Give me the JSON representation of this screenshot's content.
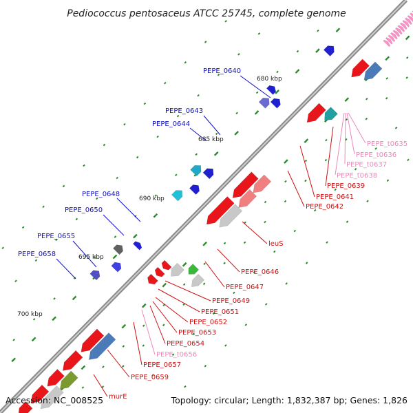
{
  "title": "Pediococcus pentosaceus ATCC 25745, complete genome",
  "footer": {
    "accession": "Accession: NC_008525",
    "summary": "Topology: circular; Length: 1,832,387 bp; Genes: 1,826"
  },
  "colors": {
    "forward_cds": "#e8161a",
    "reverse_cds": "#1515e0",
    "trna": "#ff8fc8",
    "backbone": "#888888",
    "tick": "#2a8a2a",
    "label_forward": "#1010c0",
    "label_reverse": "#cc1010",
    "label_trna": "#ee88bb"
  },
  "scale_labels": [
    {
      "id": "680",
      "text": "680 kbp"
    },
    {
      "id": "685",
      "text": "685 kbp"
    },
    {
      "id": "690",
      "text": "690 kbp"
    },
    {
      "id": "695",
      "text": "695 kbp"
    },
    {
      "id": "700",
      "text": "700 kbp"
    }
  ],
  "gene_labels": [
    {
      "id": "pepe-0640",
      "text": "PEPE_0640",
      "kind": "forward"
    },
    {
      "id": "pepe-0643",
      "text": "PEPE_0643",
      "kind": "forward"
    },
    {
      "id": "pepe-0644",
      "text": "PEPE_0644",
      "kind": "forward"
    },
    {
      "id": "pepe-0648",
      "text": "PEPE_0648",
      "kind": "forward"
    },
    {
      "id": "pepe-0650",
      "text": "PEPE_0650",
      "kind": "forward"
    },
    {
      "id": "pepe-0655",
      "text": "PEPE_0655",
      "kind": "forward"
    },
    {
      "id": "pepe-0658",
      "text": "PEPE_0658",
      "kind": "forward"
    },
    {
      "id": "pepe-t0635",
      "text": "PEPE_t0635",
      "kind": "trna"
    },
    {
      "id": "pepe-t0636",
      "text": "PEPE_t0636",
      "kind": "trna"
    },
    {
      "id": "pepe-t0637",
      "text": "PEPE_t0637",
      "kind": "trna"
    },
    {
      "id": "pepe-t0638",
      "text": "PEPE_t0638",
      "kind": "trna"
    },
    {
      "id": "pepe-0639",
      "text": "PEPE_0639",
      "kind": "reverse"
    },
    {
      "id": "pepe-0641",
      "text": "PEPE_0641",
      "kind": "reverse"
    },
    {
      "id": "pepe-0642",
      "text": "PEPE_0642",
      "kind": "reverse"
    },
    {
      "id": "leus",
      "text": "leuS",
      "kind": "reverse"
    },
    {
      "id": "pepe-0646",
      "text": "PEPE_0646",
      "kind": "reverse"
    },
    {
      "id": "pepe-0647",
      "text": "PEPE_0647",
      "kind": "reverse"
    },
    {
      "id": "pepe-0649",
      "text": "PEPE_0649",
      "kind": "reverse"
    },
    {
      "id": "pepe-0651",
      "text": "PEPE_0651",
      "kind": "reverse"
    },
    {
      "id": "pepe-0652",
      "text": "PEPE_0652",
      "kind": "reverse"
    },
    {
      "id": "pepe-0653",
      "text": "PEPE_0653",
      "kind": "reverse"
    },
    {
      "id": "pepe-0654",
      "text": "PEPE_0654",
      "kind": "reverse"
    },
    {
      "id": "pepe-t0656",
      "text": "PEPE_t0656",
      "kind": "trna"
    },
    {
      "id": "pepe-0657",
      "text": "PEPE_0657",
      "kind": "reverse"
    },
    {
      "id": "pepe-0659",
      "text": "PEPE_0659",
      "kind": "reverse"
    },
    {
      "id": "mure",
      "text": "murE",
      "kind": "reverse"
    }
  ]
}
